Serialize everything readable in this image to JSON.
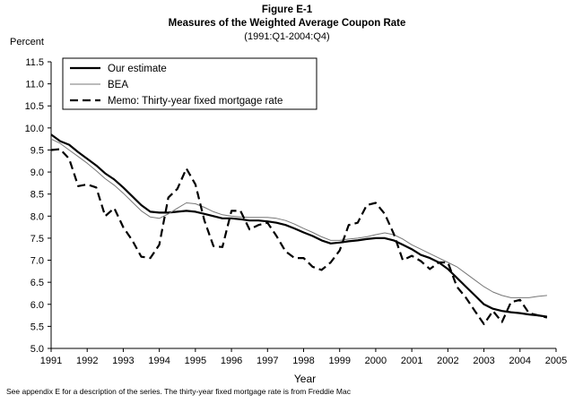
{
  "figure": {
    "title_line1": "Figure E-1",
    "title_line2": "Measures of the Weighted Average Coupon Rate",
    "title_line3": "(1991:Q1-2004:Q4)",
    "footnote": "See appendix E for a description of the series.  The thirty-year fixed mortgage rate is from Freddie Mac"
  },
  "chart_data": {
    "type": "line",
    "title": "Measures of the Weighted Average Coupon Rate",
    "ylabel": "Percent",
    "xlabel": "Year",
    "ylim": [
      5.0,
      11.5
    ],
    "xlim": [
      1991,
      2005
    ],
    "y_ticks": [
      "5.0",
      "5.5",
      "6.0",
      "6.5",
      "7.0",
      "7.5",
      "8.0",
      "8.5",
      "9.0",
      "9.5",
      "10.0",
      "10.5",
      "11.0",
      "11.5"
    ],
    "x_ticks": [
      "1991",
      "1992",
      "1993",
      "1994",
      "1995",
      "1996",
      "1997",
      "1998",
      "1999",
      "2000",
      "2001",
      "2002",
      "2003",
      "2004",
      "2005"
    ],
    "grid": false,
    "legend_position": "top-left",
    "series": [
      {
        "name": "Our estimate",
        "style": "solid-thick",
        "color": "#000000",
        "x": [
          1991.0,
          1991.25,
          1991.5,
          1991.75,
          1992.0,
          1992.25,
          1992.5,
          1992.75,
          1993.0,
          1993.25,
          1993.5,
          1993.75,
          1994.0,
          1994.25,
          1994.5,
          1994.75,
          1995.0,
          1995.25,
          1995.5,
          1995.75,
          1996.0,
          1996.25,
          1996.5,
          1996.75,
          1997.0,
          1997.25,
          1997.5,
          1997.75,
          1998.0,
          1998.25,
          1998.5,
          1998.75,
          1999.0,
          1999.25,
          1999.5,
          1999.75,
          2000.0,
          2000.25,
          2000.5,
          2000.75,
          2001.0,
          2001.25,
          2001.5,
          2001.75,
          2002.0,
          2002.25,
          2002.5,
          2002.75,
          2003.0,
          2003.25,
          2003.5,
          2003.75,
          2004.0,
          2004.25,
          2004.5,
          2004.75
        ],
        "values": [
          9.85,
          9.7,
          9.62,
          9.45,
          9.3,
          9.15,
          8.97,
          8.83,
          8.65,
          8.45,
          8.25,
          8.1,
          8.08,
          8.08,
          8.1,
          8.12,
          8.1,
          8.05,
          8.0,
          7.95,
          7.95,
          7.93,
          7.9,
          7.9,
          7.88,
          7.85,
          7.8,
          7.72,
          7.63,
          7.55,
          7.45,
          7.38,
          7.4,
          7.43,
          7.45,
          7.48,
          7.5,
          7.5,
          7.45,
          7.35,
          7.25,
          7.12,
          7.05,
          6.95,
          6.8,
          6.6,
          6.4,
          6.2,
          6.0,
          5.9,
          5.85,
          5.82,
          5.8,
          5.77,
          5.75,
          5.72
        ]
      },
      {
        "name": "BEA",
        "style": "solid-thin",
        "color": "#777777",
        "x": [
          1991.0,
          1991.25,
          1991.5,
          1991.75,
          1992.0,
          1992.25,
          1992.5,
          1992.75,
          1993.0,
          1993.25,
          1993.5,
          1993.75,
          1994.0,
          1994.25,
          1994.5,
          1994.75,
          1995.0,
          1995.25,
          1995.5,
          1995.75,
          1996.0,
          1996.25,
          1996.5,
          1996.75,
          1997.0,
          1997.25,
          1997.5,
          1997.75,
          1998.0,
          1998.25,
          1998.5,
          1998.75,
          1999.0,
          1999.25,
          1999.5,
          1999.75,
          2000.0,
          2000.25,
          2000.5,
          2000.75,
          2001.0,
          2001.25,
          2001.5,
          2001.75,
          2002.0,
          2002.25,
          2002.5,
          2002.75,
          2003.0,
          2003.25,
          2003.5,
          2003.75,
          2004.0,
          2004.25,
          2004.5,
          2004.75
        ],
        "values": [
          9.75,
          9.65,
          9.5,
          9.35,
          9.2,
          9.03,
          8.85,
          8.7,
          8.52,
          8.32,
          8.12,
          7.98,
          7.95,
          8.05,
          8.18,
          8.3,
          8.28,
          8.2,
          8.1,
          8.03,
          8.0,
          7.98,
          7.97,
          7.97,
          7.97,
          7.95,
          7.9,
          7.82,
          7.72,
          7.63,
          7.53,
          7.45,
          7.45,
          7.48,
          7.5,
          7.53,
          7.58,
          7.62,
          7.58,
          7.48,
          7.35,
          7.25,
          7.15,
          7.05,
          6.95,
          6.85,
          6.7,
          6.55,
          6.4,
          6.28,
          6.2,
          6.15,
          6.15,
          6.15,
          6.18,
          6.2
        ]
      },
      {
        "name": "Memo: Thirty-year fixed mortgage rate",
        "style": "dashed",
        "color": "#000000",
        "x": [
          1991.0,
          1991.25,
          1991.5,
          1991.75,
          1992.0,
          1992.25,
          1992.5,
          1992.75,
          1993.0,
          1993.25,
          1993.5,
          1993.75,
          1994.0,
          1994.25,
          1994.5,
          1994.75,
          1995.0,
          1995.25,
          1995.5,
          1995.75,
          1996.0,
          1996.25,
          1996.5,
          1996.75,
          1997.0,
          1997.25,
          1997.5,
          1997.75,
          1998.0,
          1998.25,
          1998.5,
          1998.75,
          1999.0,
          1999.25,
          1999.5,
          1999.75,
          2000.0,
          2000.25,
          2000.5,
          2000.75,
          2001.0,
          2001.25,
          2001.5,
          2001.75,
          2002.0,
          2002.25,
          2002.5,
          2002.75,
          2003.0,
          2003.25,
          2003.5,
          2003.75,
          2004.0,
          2004.25,
          2004.5,
          2004.75
        ],
        "values": [
          9.5,
          9.52,
          9.3,
          8.68,
          8.72,
          8.65,
          8.0,
          8.18,
          7.75,
          7.45,
          7.08,
          7.05,
          7.35,
          8.42,
          8.62,
          9.08,
          8.72,
          7.9,
          7.32,
          7.3,
          8.12,
          8.12,
          7.7,
          7.8,
          7.85,
          7.55,
          7.2,
          7.05,
          7.05,
          6.85,
          6.78,
          6.95,
          7.22,
          7.8,
          7.85,
          8.25,
          8.3,
          8.05,
          7.6,
          7.0,
          7.1,
          6.98,
          6.8,
          6.95,
          6.95,
          6.4,
          6.15,
          5.85,
          5.55,
          5.85,
          5.6,
          6.05,
          6.1,
          5.8,
          5.75,
          5.7
        ]
      }
    ]
  }
}
